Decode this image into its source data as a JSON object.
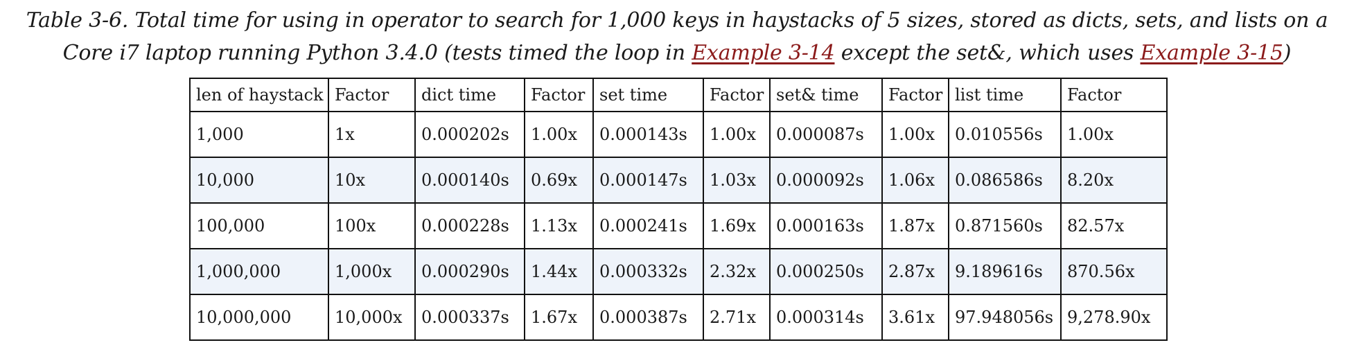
{
  "caption": {
    "text_before": "Table 3-6. Total time for using in operator to search for 1,000 keys in haystacks of 5 sizes, stored as dicts, sets, and lists on a Core i7 laptop running Python 3.4.0 (tests timed the loop in ",
    "link1": "Example 3-14",
    "text_middle": " except the set&, which uses ",
    "link2": "Example 3-15",
    "text_after": ")",
    "link_color": "#8b1a1a"
  },
  "table": {
    "headers": [
      "len of haystack",
      "Factor",
      "dict time",
      "Factor",
      "set time",
      "Factor",
      "set& time",
      "Factor",
      "list time",
      "Factor"
    ],
    "rows": [
      [
        "1,000",
        "1x",
        "0.000202s",
        "1.00x",
        "0.000143s",
        "1.00x",
        "0.000087s",
        "1.00x",
        "0.010556s",
        "1.00x"
      ],
      [
        "10,000",
        "10x",
        "0.000140s",
        "0.69x",
        "0.000147s",
        "1.03x",
        "0.000092s",
        "1.06x",
        "0.086586s",
        "8.20x"
      ],
      [
        "100,000",
        "100x",
        "0.000228s",
        "1.13x",
        "0.000241s",
        "1.69x",
        "0.000163s",
        "1.87x",
        "0.871560s",
        "82.57x"
      ],
      [
        "1,000,000",
        "1,000x",
        "0.000290s",
        "1.44x",
        "0.000332s",
        "2.32x",
        "0.000250s",
        "2.87x",
        "9.189616s",
        "870.56x"
      ],
      [
        "10,000,000",
        "10,000x",
        "0.000337s",
        "1.67x",
        "0.000387s",
        "2.71x",
        "0.000314s",
        "3.61x",
        "97.948056s",
        "9,278.90x"
      ]
    ],
    "alt_row_color": "#eef3fa"
  }
}
